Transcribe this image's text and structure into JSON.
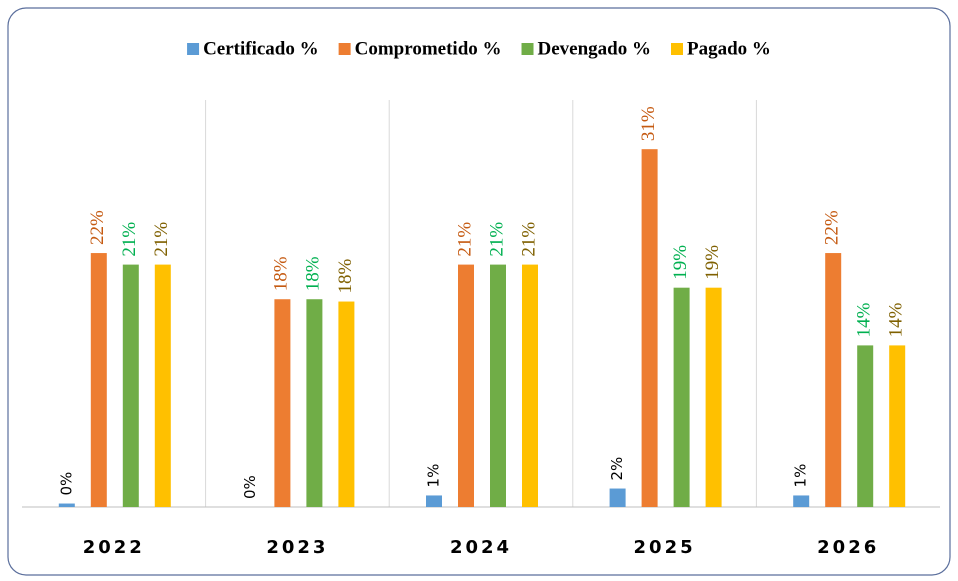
{
  "chart_data": {
    "type": "bar",
    "categories": [
      "2022",
      "2023",
      "2024",
      "2025",
      "2026"
    ],
    "series": [
      {
        "name": "Certificado %",
        "color": "#5b9bd5",
        "label_color": "#000000",
        "values": [
          0.3,
          0,
          1,
          1.6,
          1
        ],
        "value_labels": [
          "0%",
          "0%",
          "1%",
          "2%",
          "1%"
        ]
      },
      {
        "name": "Comprometido %",
        "color": "#ed7d31",
        "label_color": "#c55a11",
        "values": [
          22,
          18,
          21,
          31,
          22
        ],
        "value_labels": [
          "22%",
          "18%",
          "21%",
          "31%",
          "22%"
        ]
      },
      {
        "name": "Devengado %",
        "color": "#70ad47",
        "label_color": "#00b050",
        "values": [
          21,
          18,
          21,
          19,
          14
        ],
        "value_labels": [
          "21%",
          "18%",
          "21%",
          "19%",
          "14%"
        ]
      },
      {
        "name": "Pagado %",
        "color": "#ffc000",
        "label_color": "#7f6000",
        "values": [
          21,
          17.8,
          21,
          19,
          14
        ],
        "value_labels": [
          "21%",
          "18%",
          "21%",
          "19%",
          "14%"
        ]
      }
    ],
    "ylim": [
      0,
      35
    ],
    "legend": "top"
  }
}
